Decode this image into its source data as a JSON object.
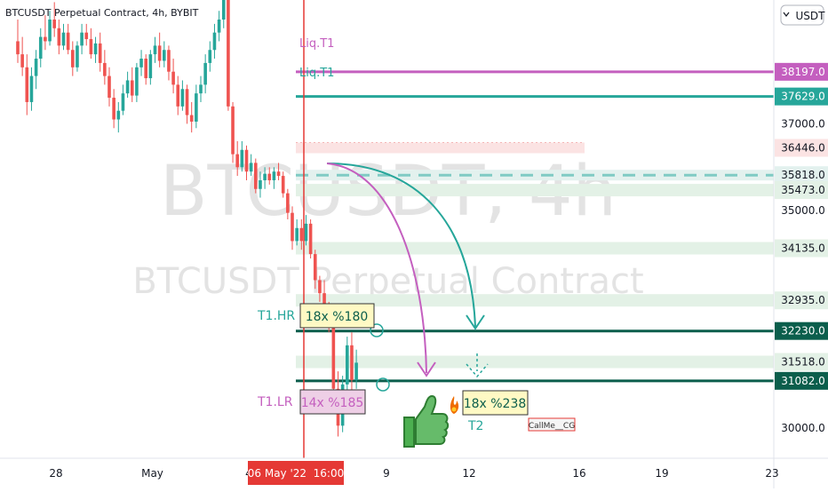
{
  "header": {
    "title": "BTCUSDT Perpetual Contract, 4h, BYBIT"
  },
  "currency_button": {
    "label": "USDT",
    "arrow": "chevron-down-icon"
  },
  "watermark": {
    "line1": "BTCUSDT, 4h",
    "line2": "BTCUSDT Perpetual Contract"
  },
  "colors": {
    "up": "#26a69a",
    "down": "#ef5350",
    "liq_purple": "#c45fbf",
    "liq_teal": "#26a69a",
    "dark_green": "#0b5e4c",
    "text_teal": "#26a69a",
    "text_purple": "#c45fbf"
  },
  "chart_data": {
    "type": "candlestick",
    "symbol": "BTCUSDT",
    "timeframe": "4h",
    "exchange": "BYBIT",
    "ylim": [
      29300,
      39850
    ],
    "x_ticks": [
      {
        "label": "28",
        "day": 0
      },
      {
        "label": "May",
        "day": 3.5
      },
      {
        "label": "4",
        "day": 7
      },
      {
        "label": "9",
        "day": 12
      },
      {
        "label": "12",
        "day": 15
      },
      {
        "label": "16",
        "day": 19
      },
      {
        "label": "19",
        "day": 22
      },
      {
        "label": "23",
        "day": 26
      }
    ],
    "crosshair": {
      "label": "06 May '22  16:00",
      "day": 9.0
    },
    "y_ticks": [
      30000,
      35000,
      37000
    ],
    "price_levels": [
      {
        "label": "38197.0",
        "value": 38197,
        "style": "liq-purple"
      },
      {
        "label": "37629.0",
        "value": 37629,
        "style": "liq-teal"
      },
      {
        "label": "36446.0",
        "value": 36446,
        "style": "pink-band"
      },
      {
        "label": "35818.0",
        "value": 35818,
        "style": "dashed-teal"
      },
      {
        "label": "35473.0",
        "value": 35473,
        "style": "green-band"
      },
      {
        "label": "34135.0",
        "value": 34135,
        "style": "green-band"
      },
      {
        "label": "32935.0",
        "value": 32935,
        "style": "green-band"
      },
      {
        "label": "32230.0",
        "value": 32230,
        "style": "dark-line"
      },
      {
        "label": "31518.0",
        "value": 31518,
        "style": "green-band"
      },
      {
        "label": "31082.0",
        "value": 31082,
        "style": "dark-line"
      }
    ],
    "annotations": [
      {
        "id": "liq1_top",
        "text": "Liq.T1"
      },
      {
        "id": "liq1_bottom",
        "text": "Liq.T1"
      },
      {
        "id": "t1hr_label",
        "text": "T1.HR"
      },
      {
        "id": "t1hr_box",
        "text": "18x %180"
      },
      {
        "id": "t1lr_label",
        "text": "T1.LR"
      },
      {
        "id": "t1lr_box",
        "text": "14x %185"
      },
      {
        "id": "t2_box",
        "text": "18x %238"
      },
      {
        "id": "t2_label",
        "text": "T2"
      },
      {
        "id": "author",
        "text": "CallMe__CG"
      }
    ],
    "candles": [
      {
        "o": 38900,
        "h": 39400,
        "l": 38400,
        "c": 38600
      },
      {
        "o": 38600,
        "h": 39000,
        "l": 38100,
        "c": 38300
      },
      {
        "o": 38300,
        "h": 38600,
        "l": 37200,
        "c": 37500
      },
      {
        "o": 37500,
        "h": 38300,
        "l": 37300,
        "c": 38100
      },
      {
        "o": 38100,
        "h": 38700,
        "l": 37800,
        "c": 38500
      },
      {
        "o": 38500,
        "h": 39200,
        "l": 38300,
        "c": 39000
      },
      {
        "o": 39000,
        "h": 39500,
        "l": 38700,
        "c": 38900
      },
      {
        "o": 38900,
        "h": 39600,
        "l": 38800,
        "c": 39400
      },
      {
        "o": 39400,
        "h": 39800,
        "l": 39000,
        "c": 39200
      },
      {
        "o": 39200,
        "h": 39400,
        "l": 38600,
        "c": 38800
      },
      {
        "o": 38800,
        "h": 39300,
        "l": 38700,
        "c": 39100
      },
      {
        "o": 39100,
        "h": 39300,
        "l": 38600,
        "c": 38700
      },
      {
        "o": 38700,
        "h": 38900,
        "l": 38100,
        "c": 38300
      },
      {
        "o": 38300,
        "h": 38900,
        "l": 38200,
        "c": 38800
      },
      {
        "o": 38800,
        "h": 39300,
        "l": 38600,
        "c": 39100
      },
      {
        "o": 39100,
        "h": 39300,
        "l": 38800,
        "c": 38950
      },
      {
        "o": 38950,
        "h": 39200,
        "l": 38500,
        "c": 38600
      },
      {
        "o": 38600,
        "h": 39000,
        "l": 38400,
        "c": 38850
      },
      {
        "o": 38850,
        "h": 39100,
        "l": 38200,
        "c": 38400
      },
      {
        "o": 38400,
        "h": 38700,
        "l": 37900,
        "c": 38100
      },
      {
        "o": 38100,
        "h": 38300,
        "l": 37400,
        "c": 37600
      },
      {
        "o": 37600,
        "h": 37800,
        "l": 36900,
        "c": 37100
      },
      {
        "o": 37100,
        "h": 37500,
        "l": 36800,
        "c": 37300
      },
      {
        "o": 37300,
        "h": 37900,
        "l": 37200,
        "c": 37700
      },
      {
        "o": 37700,
        "h": 38200,
        "l": 37600,
        "c": 38000
      },
      {
        "o": 38000,
        "h": 38300,
        "l": 37500,
        "c": 37650
      },
      {
        "o": 37650,
        "h": 38400,
        "l": 37500,
        "c": 38300
      },
      {
        "o": 38300,
        "h": 38700,
        "l": 38100,
        "c": 38500
      },
      {
        "o": 38500,
        "h": 38600,
        "l": 37900,
        "c": 38050
      },
      {
        "o": 38050,
        "h": 38700,
        "l": 37900,
        "c": 38600
      },
      {
        "o": 38600,
        "h": 39000,
        "l": 38400,
        "c": 38800
      },
      {
        "o": 38800,
        "h": 39100,
        "l": 38300,
        "c": 38450
      },
      {
        "o": 38450,
        "h": 38900,
        "l": 38300,
        "c": 38700
      },
      {
        "o": 38700,
        "h": 38800,
        "l": 38000,
        "c": 38200
      },
      {
        "o": 38200,
        "h": 38500,
        "l": 37700,
        "c": 37900
      },
      {
        "o": 37900,
        "h": 38100,
        "l": 37200,
        "c": 37400
      },
      {
        "o": 37400,
        "h": 38000,
        "l": 37300,
        "c": 37800
      },
      {
        "o": 37800,
        "h": 37900,
        "l": 37000,
        "c": 37200
      },
      {
        "o": 37200,
        "h": 37500,
        "l": 36800,
        "c": 37050
      },
      {
        "o": 37050,
        "h": 37900,
        "l": 36900,
        "c": 37700
      },
      {
        "o": 37700,
        "h": 38100,
        "l": 37500,
        "c": 37900
      },
      {
        "o": 37900,
        "h": 38600,
        "l": 37700,
        "c": 38400
      },
      {
        "o": 38400,
        "h": 38900,
        "l": 38200,
        "c": 38700
      },
      {
        "o": 38700,
        "h": 39300,
        "l": 38500,
        "c": 39100
      },
      {
        "o": 39100,
        "h": 39600,
        "l": 38900,
        "c": 39400
      },
      {
        "o": 39400,
        "h": 40200,
        "l": 39200,
        "c": 40000
      },
      {
        "o": 40000,
        "h": 40400,
        "l": 37300,
        "c": 37400
      },
      {
        "o": 37400,
        "h": 37500,
        "l": 36100,
        "c": 36300
      },
      {
        "o": 36300,
        "h": 36600,
        "l": 35800,
        "c": 36000
      },
      {
        "o": 36000,
        "h": 36600,
        "l": 35900,
        "c": 36400
      },
      {
        "o": 36400,
        "h": 36500,
        "l": 35700,
        "c": 35900
      },
      {
        "o": 35900,
        "h": 36300,
        "l": 35800,
        "c": 36100
      },
      {
        "o": 36100,
        "h": 36200,
        "l": 35400,
        "c": 35500
      },
      {
        "o": 35500,
        "h": 35900,
        "l": 35300,
        "c": 35700
      },
      {
        "o": 35700,
        "h": 36000,
        "l": 35500,
        "c": 35850
      },
      {
        "o": 35850,
        "h": 36000,
        "l": 35600,
        "c": 35700
      },
      {
        "o": 35700,
        "h": 36000,
        "l": 35500,
        "c": 35900
      },
      {
        "o": 35900,
        "h": 36100,
        "l": 35700,
        "c": 35800
      },
      {
        "o": 35800,
        "h": 35900,
        "l": 35300,
        "c": 35400
      },
      {
        "o": 35400,
        "h": 35500,
        "l": 34800,
        "c": 34950
      },
      {
        "o": 34950,
        "h": 35100,
        "l": 34100,
        "c": 34300
      },
      {
        "o": 34300,
        "h": 34800,
        "l": 34200,
        "c": 34600
      },
      {
        "o": 34600,
        "h": 34800,
        "l": 34100,
        "c": 34300
      },
      {
        "o": 34300,
        "h": 34900,
        "l": 34200,
        "c": 34700
      },
      {
        "o": 34700,
        "h": 34800,
        "l": 33900,
        "c": 34000
      },
      {
        "o": 34000,
        "h": 34100,
        "l": 33200,
        "c": 33400
      },
      {
        "o": 33400,
        "h": 33500,
        "l": 32900,
        "c": 33100
      },
      {
        "o": 33100,
        "h": 33400,
        "l": 32600,
        "c": 32800
      },
      {
        "o": 32800,
        "h": 32900,
        "l": 32200,
        "c": 32300
      },
      {
        "o": 32300,
        "h": 32500,
        "l": 30700,
        "c": 30900
      },
      {
        "o": 30900,
        "h": 31300,
        "l": 29800,
        "c": 30050
      },
      {
        "o": 30050,
        "h": 31200,
        "l": 29900,
        "c": 31000
      },
      {
        "o": 31000,
        "h": 32100,
        "l": 30800,
        "c": 31900
      },
      {
        "o": 31900,
        "h": 32200,
        "l": 30800,
        "c": 31100
      },
      {
        "o": 31100,
        "h": 31800,
        "l": 30900,
        "c": 31500
      }
    ]
  }
}
